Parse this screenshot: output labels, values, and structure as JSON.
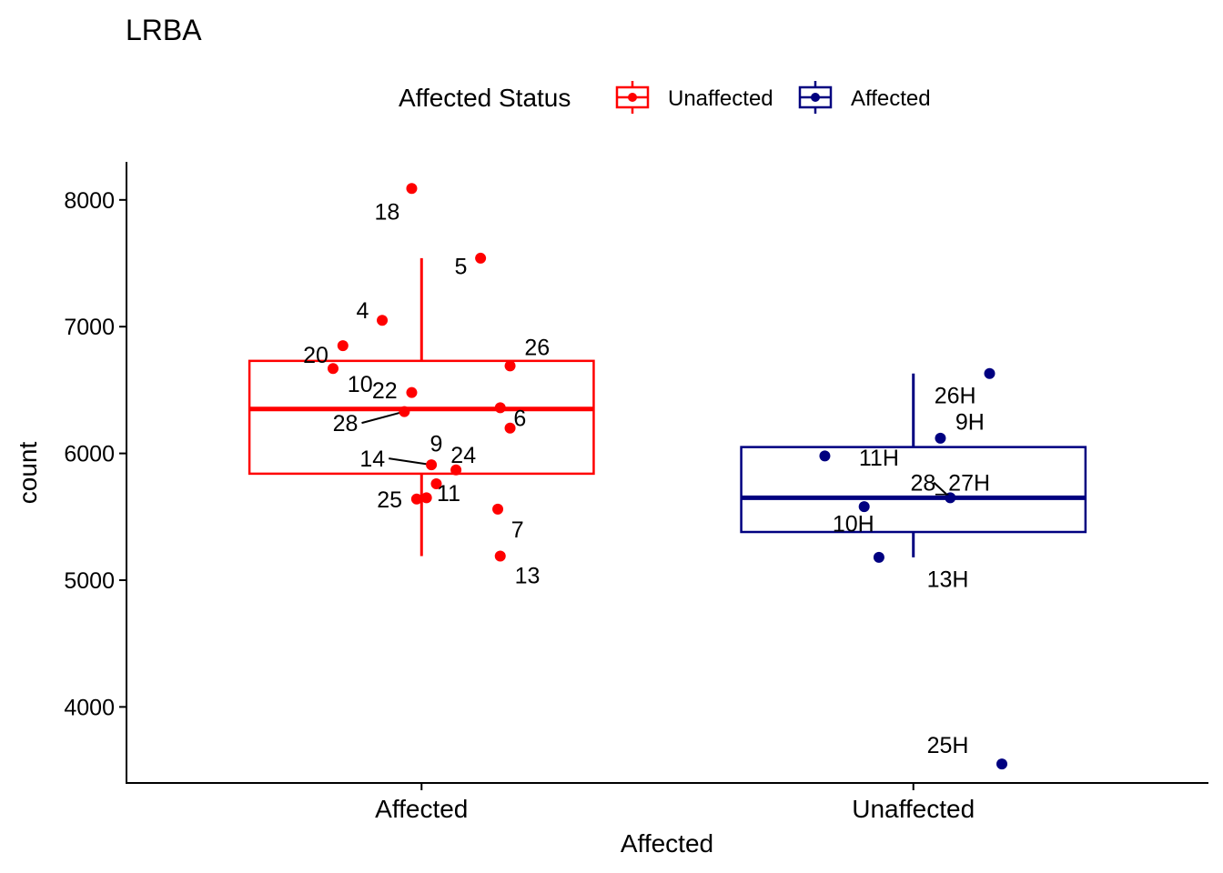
{
  "chart_data": {
    "type": "box",
    "title": "LRBA",
    "xlabel": "Affected",
    "ylabel": "count",
    "ylim": [
      3400,
      8300
    ],
    "yticks": [
      4000,
      5000,
      6000,
      7000,
      8000
    ],
    "categories": [
      "Affected",
      "Unaffected"
    ],
    "legend": {
      "title": "Affected Status",
      "position": "top",
      "entries": [
        {
          "label": "Unaffected",
          "color": "#ff0000"
        },
        {
          "label": "Affected",
          "color": "#000080"
        }
      ]
    },
    "boxes": [
      {
        "category": "Affected",
        "color": "#ff0000",
        "lower_whisker": 5190,
        "q1": 5840,
        "median": 6350,
        "q3": 6730,
        "upper_whisker": 7540
      },
      {
        "category": "Unaffected",
        "color": "#000080",
        "lower_whisker": 5180,
        "q1": 5380,
        "median": 5650,
        "q3": 6050,
        "upper_whisker": 6630
      }
    ],
    "points": [
      {
        "category": "Affected",
        "jitter": -0.02,
        "y": 8090,
        "label": "18",
        "label_dx": -0.05,
        "label_y": 7910
      },
      {
        "category": "Affected",
        "jitter": 0.12,
        "y": 7540,
        "label": "5",
        "label_dx": -0.04,
        "label_y": 7480
      },
      {
        "category": "Affected",
        "jitter": -0.08,
        "y": 7050,
        "label": "4",
        "label_dx": -0.04,
        "label_y": 7130
      },
      {
        "category": "Affected",
        "jitter": -0.16,
        "y": 6850,
        "label": "20",
        "label_dx": -0.055,
        "label_y": 6780
      },
      {
        "category": "Affected",
        "jitter": 0.18,
        "y": 6690,
        "label": "26",
        "label_dx": 0.055,
        "label_y": 6840
      },
      {
        "category": "Affected",
        "jitter": -0.18,
        "y": 6670,
        "label": "10",
        "label_dx": 0.055,
        "label_y": 6550
      },
      {
        "category": "Affected",
        "jitter": -0.02,
        "y": 6480,
        "label": "22",
        "label_dx": -0.055,
        "label_y": 6500
      },
      {
        "category": "Affected",
        "jitter": 0.16,
        "y": 6360,
        "label": "6",
        "label_dx": 0.04,
        "label_y": 6280
      },
      {
        "category": "Affected",
        "jitter": -0.035,
        "y": 6330,
        "label": "28",
        "label_dx": -0.12,
        "label_y": 6240,
        "leader": true
      },
      {
        "category": "Affected",
        "jitter": 0.18,
        "y": 6200,
        "label": "",
        "label_dx": 0,
        "label_y": 0
      },
      {
        "category": "Affected",
        "jitter": 0.02,
        "y": 5910,
        "label": "14",
        "label_dx": -0.12,
        "label_y": 5960,
        "leader": true
      },
      {
        "category": "Affected",
        "jitter": 0.07,
        "y": 5870,
        "label": "9",
        "label_dx": -0.04,
        "label_y": 6080
      },
      {
        "category": "Affected",
        "jitter": 0.03,
        "y": 5760,
        "label": "24",
        "label_dx": 0.055,
        "label_y": 5990
      },
      {
        "category": "Affected",
        "jitter": 0.01,
        "y": 5650,
        "label": "11",
        "label_dx": 0.045,
        "label_y": 5690
      },
      {
        "category": "Affected",
        "jitter": -0.01,
        "y": 5640,
        "label": "25",
        "label_dx": -0.055,
        "label_y": 5640
      },
      {
        "category": "Affected",
        "jitter": 0.155,
        "y": 5560,
        "label": "7",
        "label_dx": 0.04,
        "label_y": 5400
      },
      {
        "category": "Affected",
        "jitter": 0.16,
        "y": 5190,
        "label": "13",
        "label_dx": 0.055,
        "label_y": 5040
      },
      {
        "category": "Unaffected",
        "jitter": 0.155,
        "y": 6630,
        "label": "26H",
        "label_dx": -0.07,
        "label_y": 6460
      },
      {
        "category": "Unaffected",
        "jitter": 0.055,
        "y": 6120,
        "label": "9H",
        "label_dx": 0.06,
        "label_y": 6250
      },
      {
        "category": "Unaffected",
        "jitter": -0.18,
        "y": 5980,
        "label": "11H",
        "label_dx": 0.11,
        "label_y": 5970
      },
      {
        "category": "Unaffected",
        "jitter": 0.075,
        "y": 5650,
        "label": "28_27H",
        "label_dx": 0.0,
        "label_y": 5770,
        "leader": true
      },
      {
        "category": "Unaffected",
        "jitter": -0.1,
        "y": 5580,
        "label": "10H",
        "label_dx": -0.022,
        "label_y": 5450
      },
      {
        "category": "Unaffected",
        "jitter": -0.07,
        "y": 5180,
        "label": "13H",
        "label_dx": 0.14,
        "label_y": 5010
      },
      {
        "category": "Unaffected",
        "jitter": 0.18,
        "y": 3550,
        "label": "25H",
        "label_dx": -0.11,
        "label_y": 3700
      }
    ]
  }
}
